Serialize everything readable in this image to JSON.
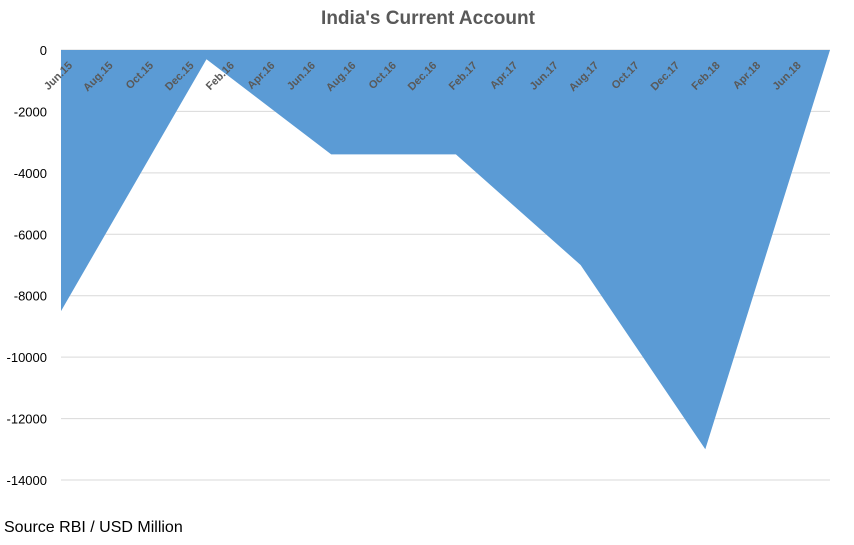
{
  "chart_data": {
    "type": "area",
    "title": "India's Current Account",
    "xlabel": "",
    "ylabel": "",
    "ylim": [
      -14000,
      0
    ],
    "yticks": [
      0,
      -2000,
      -4000,
      -6000,
      -8000,
      -10000,
      -12000,
      -14000
    ],
    "grid": true,
    "legend": "none",
    "color": "#5b9bd5",
    "categories": [
      "Jun.15",
      "Aug.15",
      "Oct.15",
      "Dec.15",
      "Feb.16",
      "Apr.16",
      "Jun.16",
      "Aug.16",
      "Oct.16",
      "Dec.16",
      "Feb.17",
      "Apr.17",
      "Jun.17",
      "Aug.17",
      "Oct.17",
      "Dec.17",
      "Feb.18",
      "Apr.18",
      "Jun.18"
    ],
    "points": [
      {
        "x": "Jun.15",
        "y": -8500
      },
      {
        "x": "Jan.16",
        "y": -300
      },
      {
        "x": "Jul.16",
        "y": -3400
      },
      {
        "x": "Jan.17",
        "y": -3400
      },
      {
        "x": "Jul.17",
        "y": -7000
      },
      {
        "x": "Jan.18",
        "y": -13000
      },
      {
        "x": "Jul.18",
        "y": 0
      }
    ]
  },
  "footer": {
    "source": "Source RBI / USD Million"
  }
}
